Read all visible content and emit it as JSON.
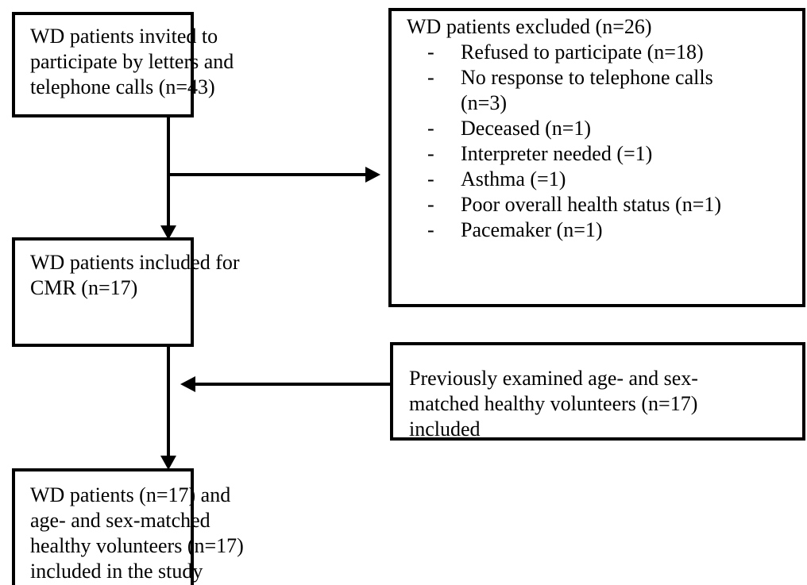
{
  "nodes": [
    {
      "lines": [
        "WD patients invited to",
        "participate by letters and",
        "telephone calls (n=43)"
      ]
    },
    {
      "lines": [
        "WD patients excluded (n=26)"
      ],
      "items": [
        {
          "bullet": "-",
          "lines": [
            "Refused to participate (n=18)"
          ]
        },
        {
          "bullet": "-",
          "lines": [
            "No response to telephone calls",
            "(n=3)"
          ]
        },
        {
          "bullet": "-",
          "lines": [
            "Deceased (n=1)"
          ]
        },
        {
          "bullet": "-",
          "lines": [
            "Interpreter needed (=1)"
          ]
        },
        {
          "bullet": "-",
          "lines": [
            "Asthma (=1)"
          ]
        },
        {
          "bullet": "-",
          "lines": [
            "Poor overall health status (n=1)"
          ]
        },
        {
          "bullet": "-",
          "lines": [
            "Pacemaker (n=1)"
          ]
        }
      ]
    },
    {
      "lines": [
        "WD patients included for",
        "CMR (n=17)"
      ]
    },
    {
      "lines": [
        "Previously examined age- and sex-",
        "matched healthy volunteers (n=17)",
        "included"
      ]
    },
    {
      "lines": [
        "WD patients (n=17) and",
        "age- and sex-matched",
        "healthy volunteers (n=17)",
        "included in the study"
      ]
    }
  ]
}
